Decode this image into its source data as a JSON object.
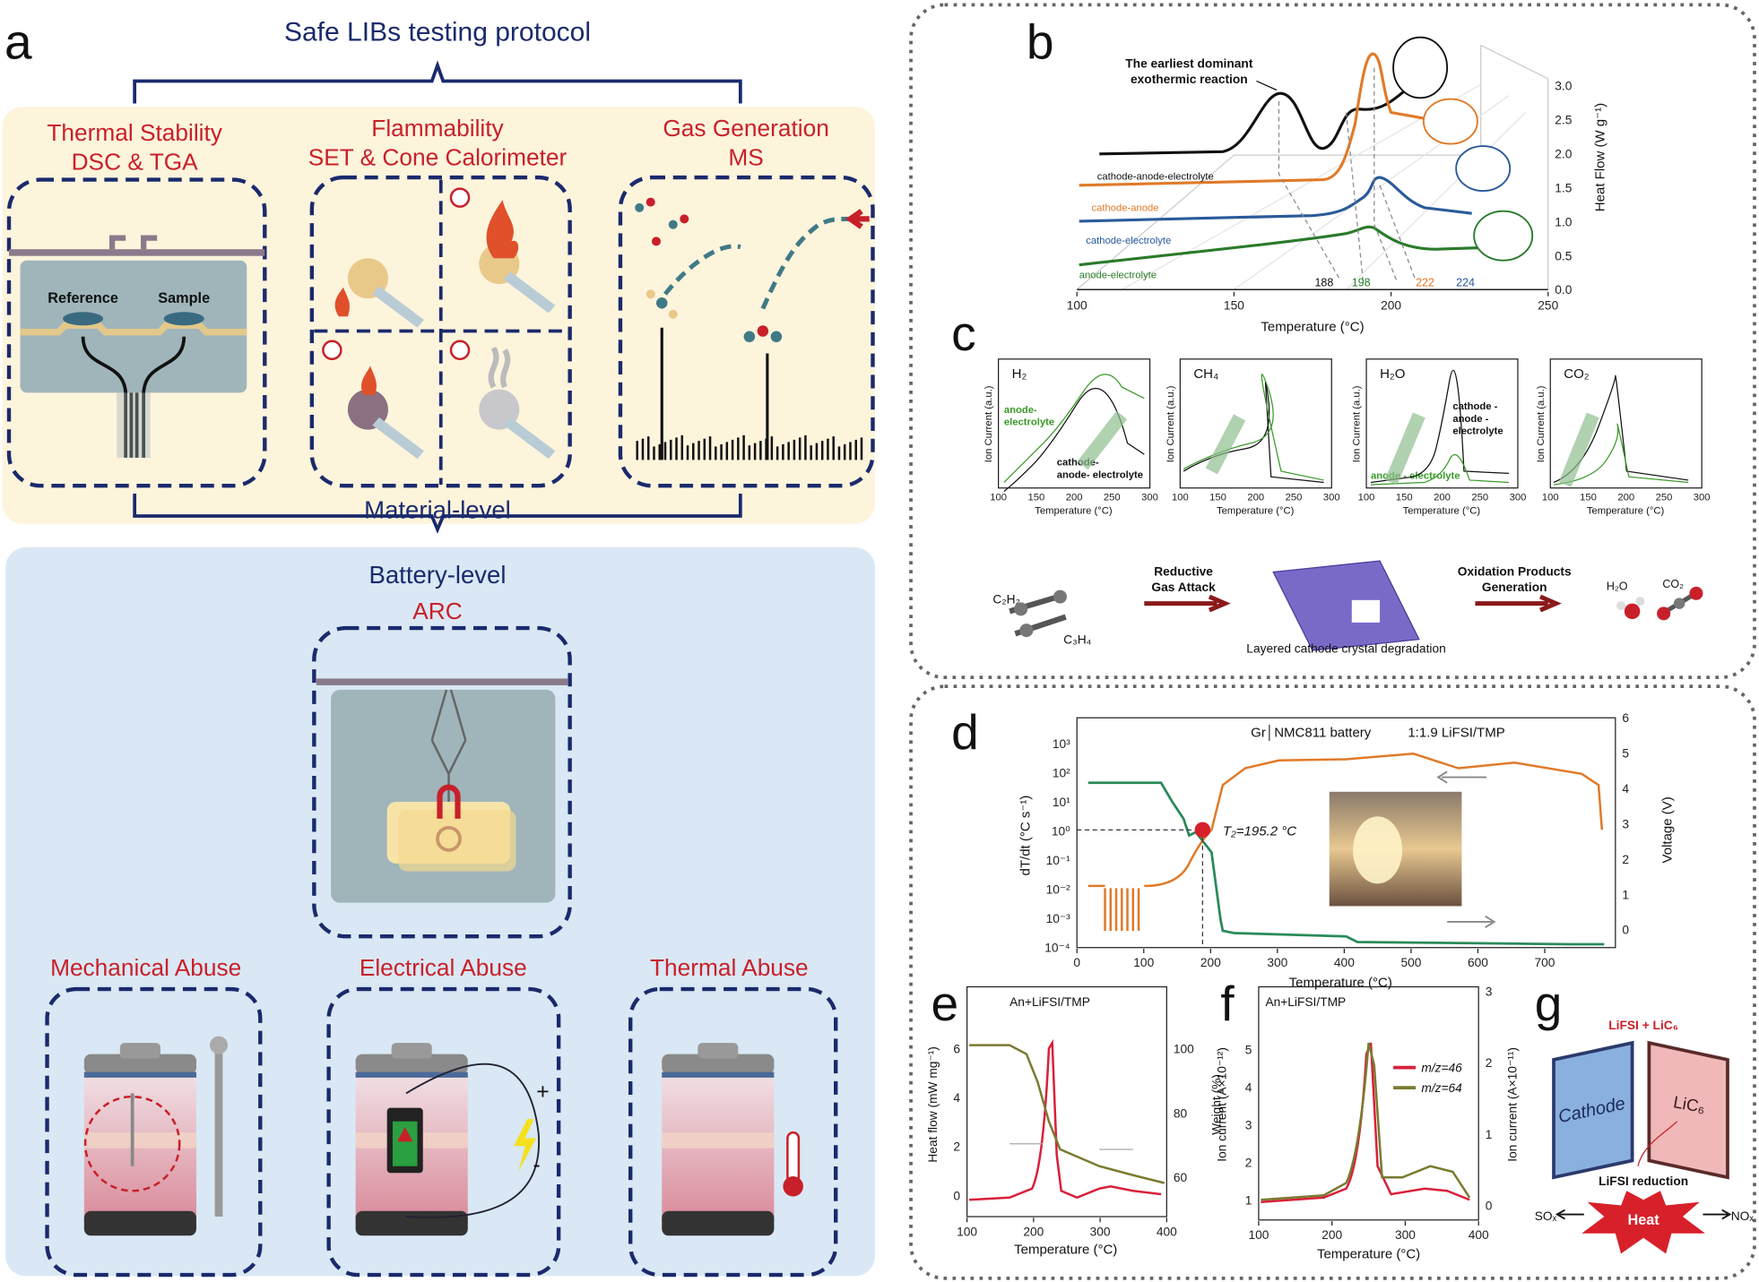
{
  "panel_a": {
    "label": "a",
    "title": "Safe LIBs testing protocol",
    "tests": [
      {
        "title": "Thermal Stability",
        "method": "DSC & TGA"
      },
      {
        "title": "Flammability",
        "method": "SET & Cone Calorimeter"
      },
      {
        "title": "Gas Generation",
        "method": "MS"
      }
    ],
    "dsc_labels": [
      "Reference",
      "Sample"
    ],
    "material_level": "Material-level",
    "battery_level": "Battery-level",
    "arc": "ARC",
    "abuse": [
      "Mechanical Abuse",
      "Electrical Abuse",
      "Thermal Abuse"
    ],
    "polarity": [
      "+",
      "-"
    ]
  },
  "panel_b": {
    "label": "b",
    "annotation": [
      "The earliest dominant",
      "exothermic reaction"
    ],
    "series": [
      "cathode-anode-electrolyte",
      "cathode-anode",
      "cathode-electrolyte",
      "anode-electrolyte"
    ],
    "peaks": [
      "188",
      "198",
      "222",
      "224"
    ],
    "x_label": "Temperature (°C)",
    "y_label": "Heat Flow (W g⁻¹)",
    "xticks": [
      100,
      150,
      200,
      250
    ],
    "yticks": [
      "0.0",
      "0.5",
      "1.0",
      "1.5",
      "2.0",
      "2.5",
      "3.0"
    ]
  },
  "panel_c": {
    "label": "c",
    "y_label": "Ion Current (a.u.)",
    "x_label": "Temperature (°C)",
    "xticks": [
      100,
      150,
      200,
      250,
      300
    ],
    "plots": [
      {
        "gas": "H₂",
        "legend": [
          [
            "anode-",
            "electrolyte"
          ],
          [
            "cathode-",
            "anode- electrolyte"
          ]
        ]
      },
      {
        "gas": "CH₄",
        "legend": []
      },
      {
        "gas": "H₂O",
        "legend": [
          [
            "cathode -",
            "anode -",
            "electrolyte"
          ],
          [
            "anode - electrolyte"
          ]
        ]
      },
      {
        "gas": "CO₂",
        "legend": []
      }
    ],
    "scheme": {
      "reactants": [
        "C₂H₂",
        "C₃H₄"
      ],
      "steps": [
        [
          "Reductive",
          "Gas Attack"
        ],
        [
          "Oxidation Products",
          "Generation"
        ]
      ],
      "crystal": "Layered cathode crystal degradation",
      "products": [
        "H₂O",
        "CO₂"
      ]
    }
  },
  "panel_d": {
    "label": "d",
    "battery": "Gr│NMC811 battery",
    "electrolyte": "1:1.9 LiFSI/TMP",
    "annotation": "T₂=195.2 °C",
    "x_label": "Temperature (°C)",
    "y_label": "dT/dt (°C s⁻¹)",
    "y2_label": "Voltage (V)",
    "xticks": [
      0,
      100,
      200,
      300,
      400,
      500,
      600,
      700
    ],
    "yticks": [
      "10⁻⁴",
      "10⁻³",
      "10⁻²",
      "10⁻¹",
      "10⁰",
      "10¹",
      "10²",
      "10³"
    ],
    "y2ticks": [
      0,
      1,
      2,
      3,
      4,
      5,
      6
    ]
  },
  "panel_e": {
    "label": "e",
    "note": "An+LiFSI/TMP",
    "x_label": "Temperature (°C)",
    "y_label": "Heat flow (mW mg⁻¹)",
    "y2_label": "Weight (%)",
    "xticks": [
      100,
      200,
      300,
      400
    ],
    "yticks": [
      0,
      2,
      4,
      6
    ],
    "y2ticks": [
      60,
      80,
      100
    ]
  },
  "panel_f": {
    "label": "f",
    "note": "An+LiFSI/TMP",
    "legend": [
      "m/z=46",
      "m/z=64"
    ],
    "x_label": "Temperature (°C)",
    "y_label": "Ion current (A×10⁻¹²)",
    "y2_label": "Ion current (A×10⁻¹¹)",
    "xticks": [
      100,
      200,
      300,
      400
    ],
    "yticks": [
      1,
      2,
      3,
      4,
      5
    ],
    "y2ticks": [
      0,
      1,
      2,
      3
    ]
  },
  "panel_g": {
    "label": "g",
    "reaction": "LiFSI + LiC₆",
    "electrodes": [
      "Cathode",
      "LiC₆"
    ],
    "reduction": "LiFSI reduction",
    "heat": "Heat",
    "gases": [
      "SOₓ",
      "NOₓ"
    ]
  }
}
